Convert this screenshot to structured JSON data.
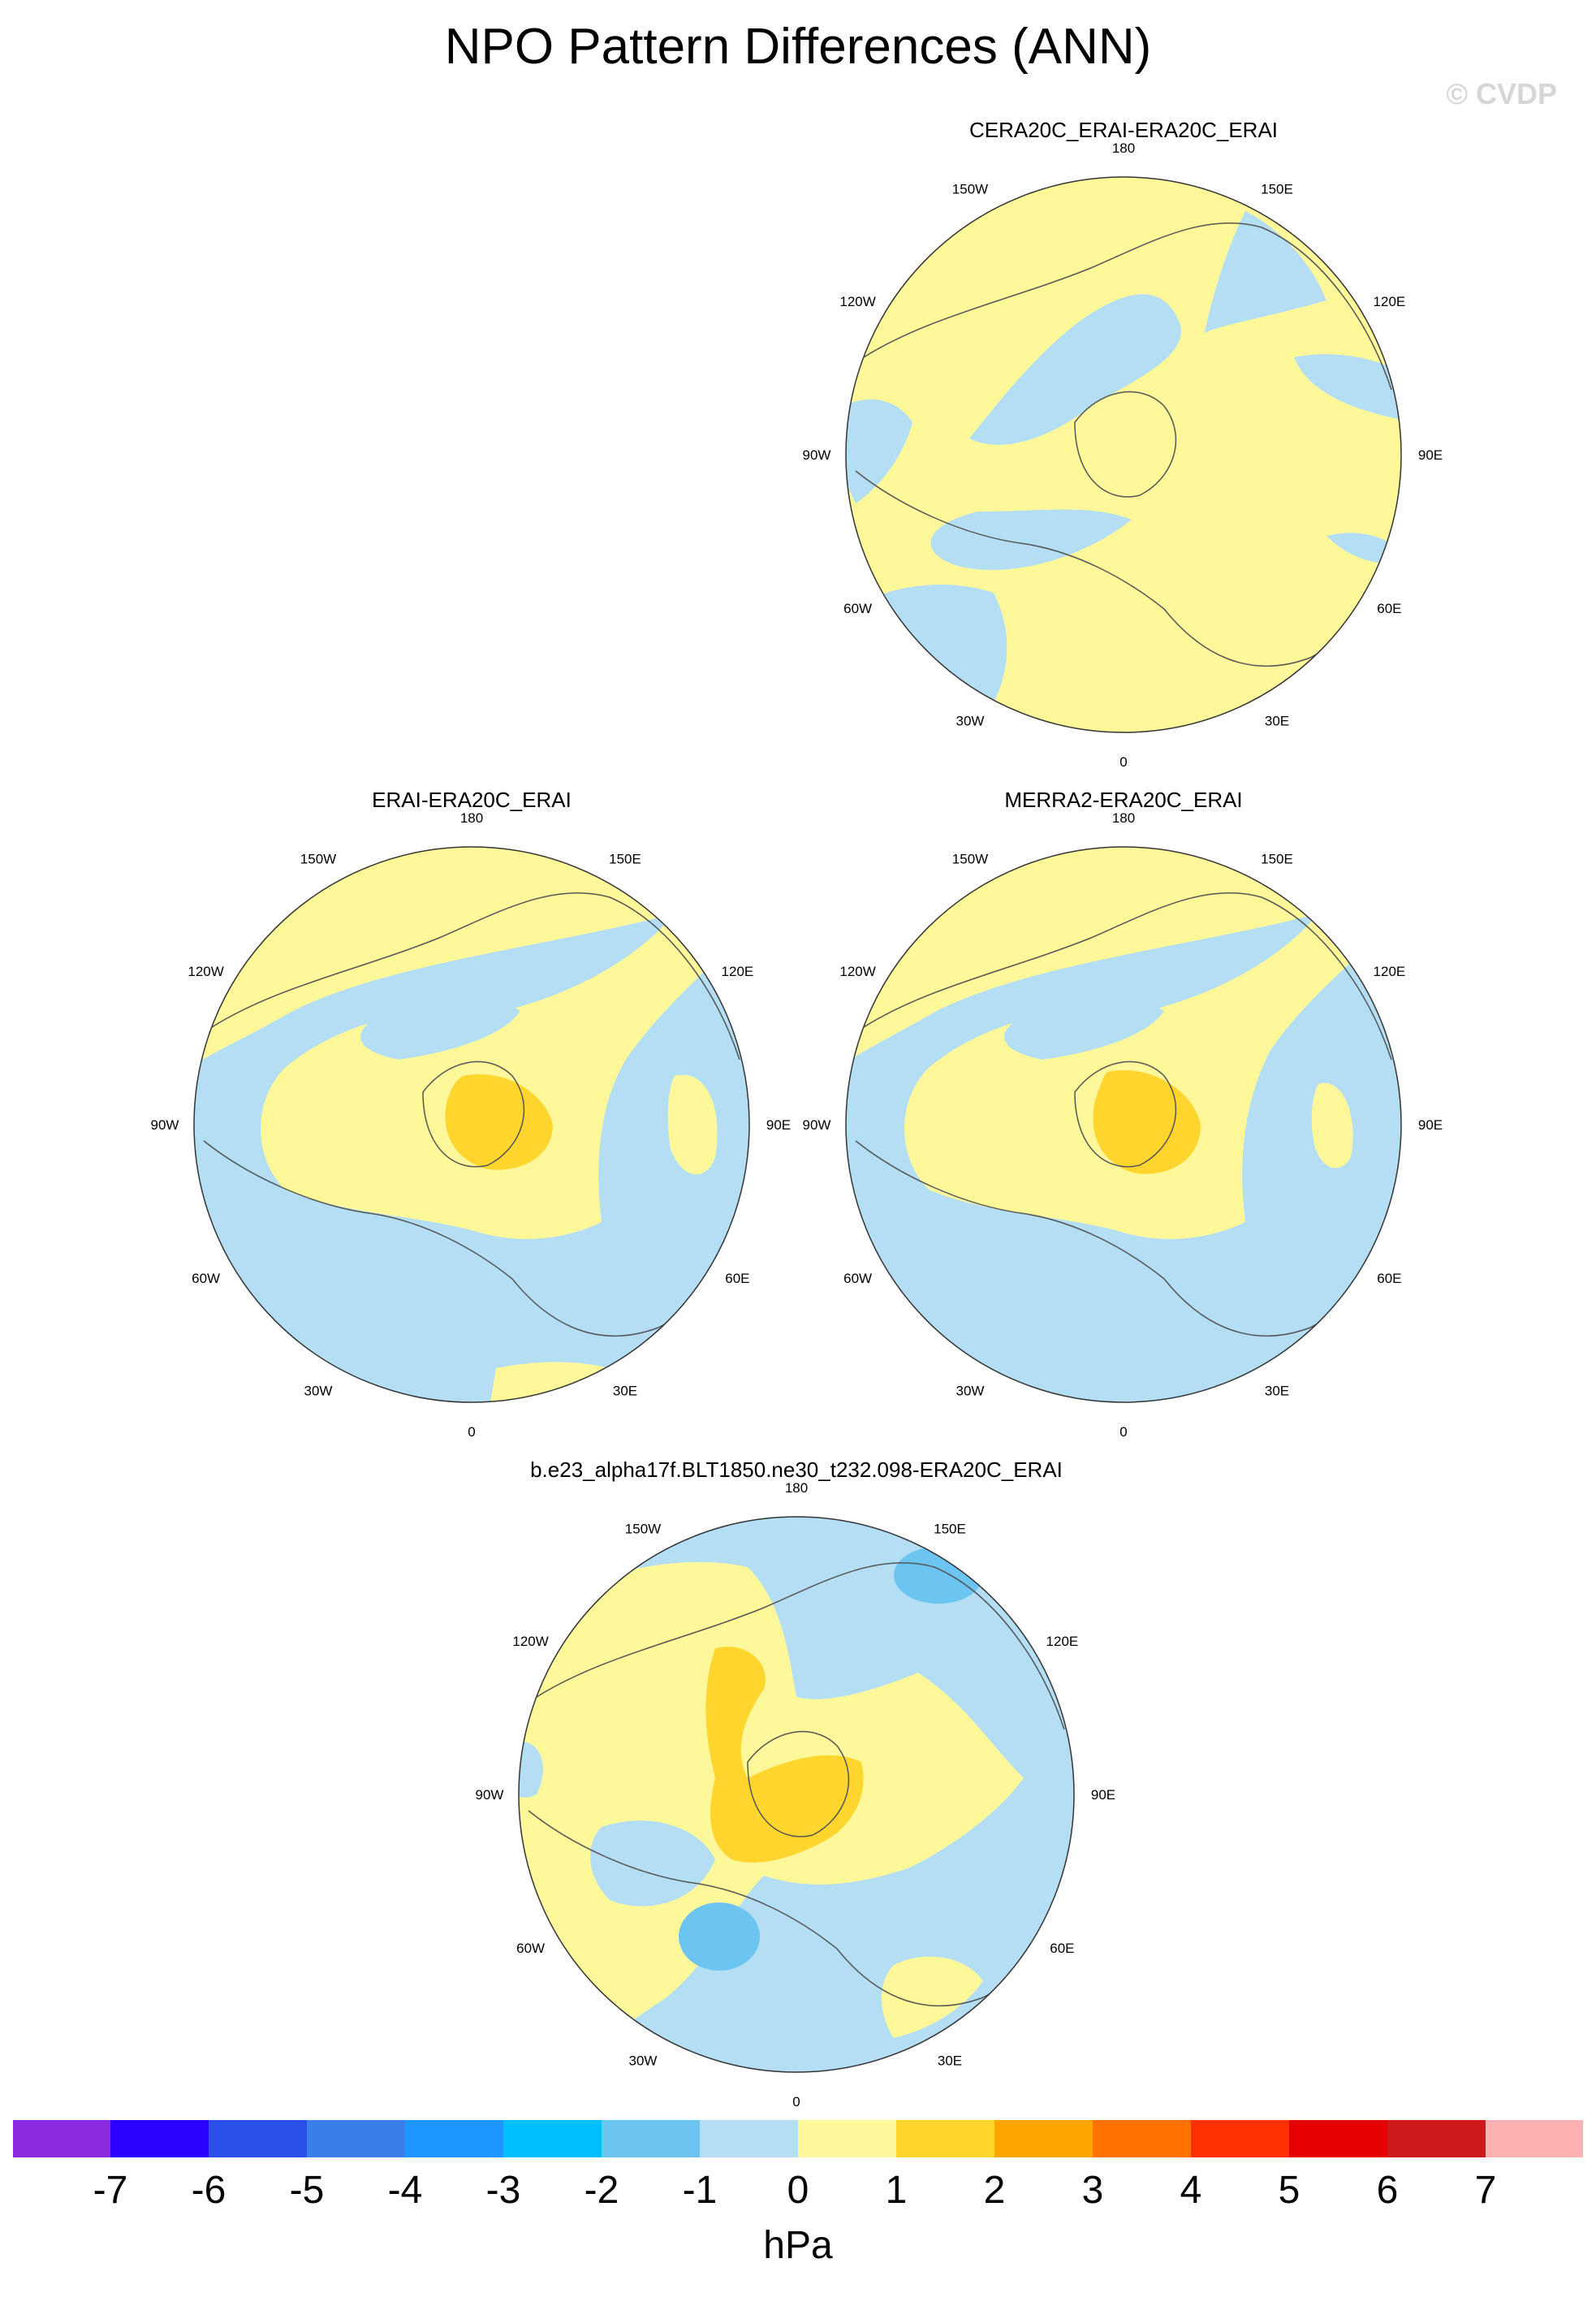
{
  "title": "NPO Pattern Differences (ANN)",
  "watermark": "© CVDP",
  "colors": {
    "neg1": "#b3def4",
    "pos1": "#fff89a",
    "pos2": "#ffd52e",
    "neg2": "#6cc4f1",
    "coast": "#555555",
    "rim": "#333333"
  },
  "panels": [
    {
      "id": "p1",
      "title": "CERA20C_ERAI-ERA20C_ERAI"
    },
    {
      "id": "p2",
      "title": "ERAI-ERA20C_ERAI"
    },
    {
      "id": "p3",
      "title": "MERRA2-ERA20C_ERAI"
    },
    {
      "id": "p4",
      "title": "b.e23_alpha17f.BLT1850.ne30_t232.098-ERA20C_ERAI"
    }
  ],
  "longitude_labels": [
    "180",
    "150E",
    "120E",
    "90E",
    "60E",
    "30E",
    "0",
    "30W",
    "60W",
    "90W",
    "120W",
    "150W"
  ],
  "colorbar": {
    "colors": [
      "#8a2be2",
      "#2c00ff",
      "#2a4ee8",
      "#3a7ee8",
      "#1e96ff",
      "#00bfff",
      "#6cc4f1",
      "#b3def4",
      "#fff89a",
      "#ffd52e",
      "#ffa500",
      "#ff7200",
      "#ff3000",
      "#e50000",
      "#cc1a1a",
      "#ffb2b2"
    ],
    "ticks": [
      "-7",
      "-6",
      "-5",
      "-4",
      "-3",
      "-2",
      "-1",
      "0",
      "1",
      "2",
      "3",
      "4",
      "5",
      "6",
      "7"
    ],
    "units": "hPa"
  }
}
